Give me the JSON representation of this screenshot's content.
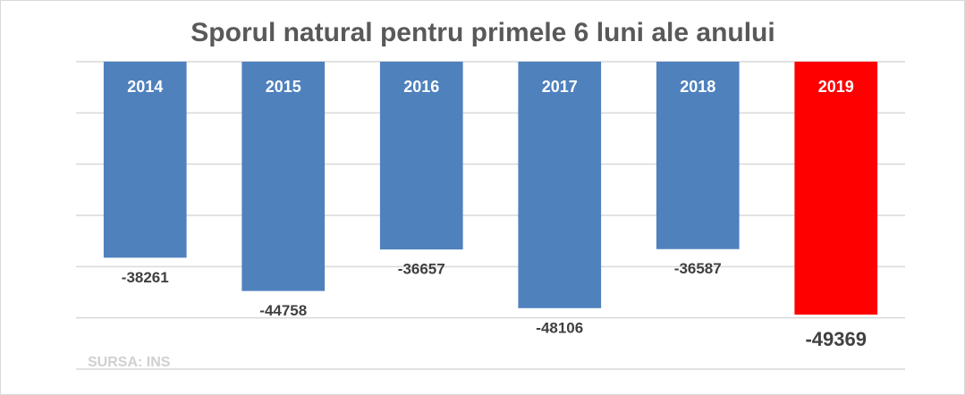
{
  "chart_data": {
    "type": "bar",
    "title": "Sporul natural pentru primele 6 luni ale anului",
    "categories": [
      "2014",
      "2015",
      "2016",
      "2017",
      "2018",
      "2019"
    ],
    "values": [
      -38261,
      -44758,
      -36657,
      -48106,
      -36587,
      -49369
    ],
    "colors": [
      "#4f81bd",
      "#4f81bd",
      "#4f81bd",
      "#4f81bd",
      "#4f81bd",
      "#ff0000"
    ],
    "ylim": [
      -60000,
      0
    ],
    "yticks": [
      0,
      -10000,
      -20000,
      -30000,
      -40000,
      -50000,
      -60000
    ],
    "grid": true,
    "source": "SURSA: INS"
  }
}
